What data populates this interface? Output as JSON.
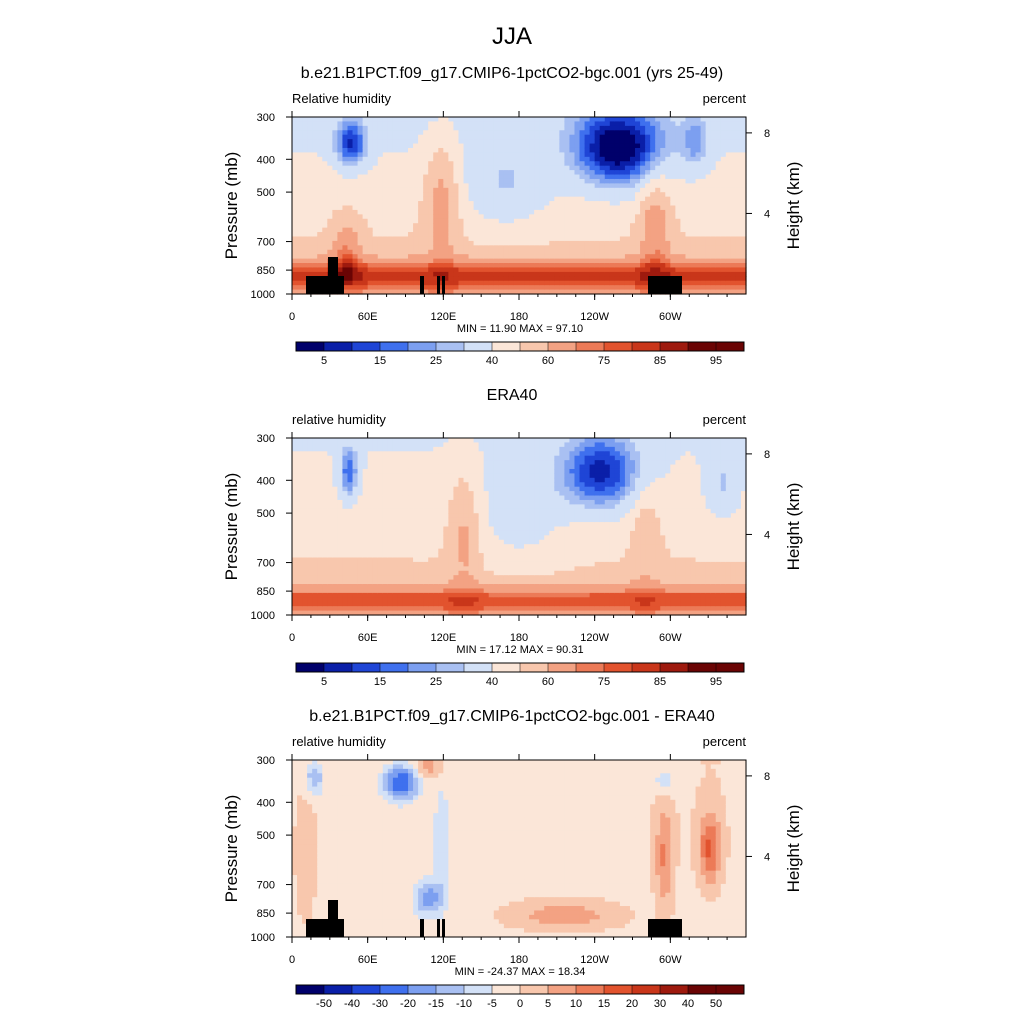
{
  "figure_title": "JJA",
  "chart_data": [
    {
      "type": "heatmap",
      "title": "b.e21.B1PCT.f09_g17.CMIP6-1pctCO2-bgc.001 (yrs 25-49)",
      "left_label": "Relative humidity",
      "right_label": "percent",
      "ylabel": "Pressure (mb)",
      "ylabel_right": "Height (km)",
      "x_ticks": [
        "0",
        "60E",
        "120E",
        "180",
        "120W",
        "60W"
      ],
      "y_ticks": [
        "300",
        "400",
        "500",
        "700",
        "850",
        "1000"
      ],
      "y_right_ticks": [
        "8",
        "4"
      ],
      "stats": "MIN =  11.90  MAX =  97.10",
      "colorbar_labels": [
        "5",
        "15",
        "25",
        "40",
        "60",
        "75",
        "85",
        "95"
      ],
      "min": 11.9,
      "max": 97.1,
      "terrain_mask": true,
      "field": "model"
    },
    {
      "type": "heatmap",
      "title": "ERA40",
      "left_label": "relative humidity",
      "right_label": "percent",
      "ylabel": "Pressure (mb)",
      "ylabel_right": "Height (km)",
      "x_ticks": [
        "0",
        "60E",
        "120E",
        "180",
        "120W",
        "60W"
      ],
      "y_ticks": [
        "300",
        "400",
        "500",
        "700",
        "850",
        "1000"
      ],
      "y_right_ticks": [
        "8",
        "4"
      ],
      "stats": "MIN =  17.12  MAX =  90.31",
      "colorbar_labels": [
        "5",
        "15",
        "25",
        "40",
        "60",
        "75",
        "85",
        "95"
      ],
      "min": 17.12,
      "max": 90.31,
      "terrain_mask": false,
      "field": "obs"
    },
    {
      "type": "heatmap",
      "title": "b.e21.B1PCT.f09_g17.CMIP6-1pctCO2-bgc.001 - ERA40",
      "left_label": "relative humidity",
      "right_label": "percent",
      "ylabel": "Pressure (mb)",
      "ylabel_right": "Height (km)",
      "x_ticks": [
        "0",
        "60E",
        "120E",
        "180",
        "120W",
        "60W"
      ],
      "y_ticks": [
        "300",
        "400",
        "500",
        "700",
        "850",
        "1000"
      ],
      "y_right_ticks": [
        "8",
        "4"
      ],
      "stats": "MIN = -24.37  MAX =  18.34",
      "colorbar_labels": [
        "-50",
        "-40",
        "-30",
        "-20",
        "-15",
        "-10",
        "-5",
        "0",
        "5",
        "10",
        "15",
        "20",
        "30",
        "40",
        "50"
      ],
      "min": -24.37,
      "max": 18.34,
      "terrain_mask": true,
      "field": "diff"
    }
  ],
  "colors": {
    "abs_palette": [
      "#00006b",
      "#0a1fa8",
      "#1f45d6",
      "#3f70ee",
      "#7c9ff0",
      "#a9c0f2",
      "#d3e1f7",
      "#fbe6d8",
      "#f8c7ad",
      "#f3a283",
      "#ec7a57",
      "#e2532e",
      "#c9361a",
      "#9e1a0e",
      "#6a0404"
    ],
    "diff_palette": [
      "#00006b",
      "#0a1fa8",
      "#1f45d6",
      "#3f70ee",
      "#7c9ff0",
      "#a9c0f2",
      "#d3e1f7",
      "#fbe6d8",
      "#f8c7ad",
      "#f3a283",
      "#ec7a57",
      "#e2532e",
      "#c9361a",
      "#9e1a0e",
      "#6a0404"
    ],
    "terrain": "#000000"
  }
}
